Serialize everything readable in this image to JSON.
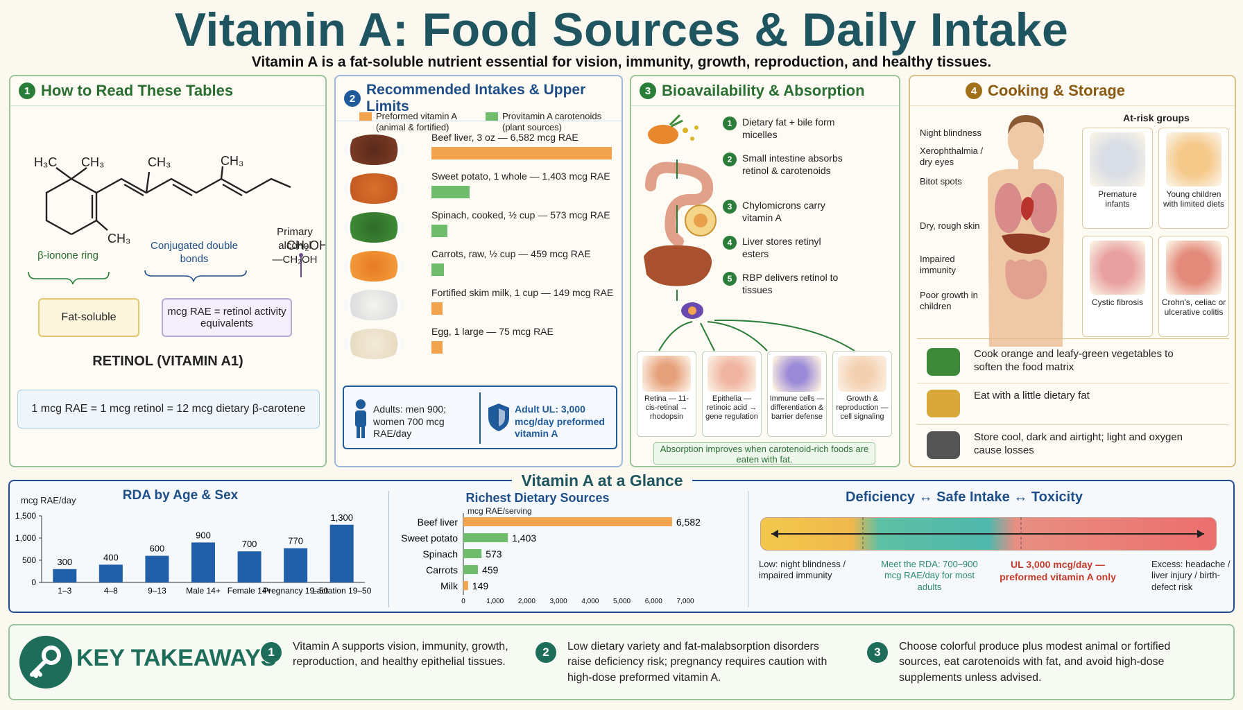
{
  "title": "Vitamin A: Food Sources & Daily Intake",
  "subtitle": "Vitamin A is a fat-soluble nutrient essential for vision, immunity, growth, reproduction, and healthy tissues.",
  "panel1": {
    "num": "1",
    "title": "How to Read These Tables",
    "structure": {
      "h3c": "H",
      "h3c_sub": "3",
      "h3c_c": "C",
      "ch3a": "CH",
      "ch3_sub": "3",
      "ch2oh": "CH",
      "ch2_sub": "2",
      "oh": "OH"
    },
    "label_ring": "β-ionone ring",
    "label_conj": "Conjugated double bonds",
    "label_alcohol_1": "Primary",
    "label_alcohol_2": "alcohol",
    "label_alcohol_3": "—CH₂OH",
    "badge_fat": "Fat-soluble",
    "badge_rae": "mcg RAE = retinol activity equivalents",
    "retinol": "RETINOL (VITAMIN A1)",
    "equiv": "1 mcg RAE = 1 mcg retinol = 12 mcg dietary β-carotene"
  },
  "panel2": {
    "num": "2",
    "title": "Recommended Intakes & Upper Limits",
    "legend_preformed": "Preformed vitamin A (animal & fortified)",
    "legend_provitamin": "Provitamin A carotenoids (plant sources)",
    "foods": [
      {
        "label": "Beef liver, 3 oz — 6,582 mcg RAE",
        "value": 6582,
        "type": "preformed"
      },
      {
        "label": "Sweet potato, 1 whole — 1,403 mcg RAE",
        "value": 1403,
        "type": "provitamin"
      },
      {
        "label": "Spinach, cooked, ½ cup — 573 mcg RAE",
        "value": 573,
        "type": "provitamin"
      },
      {
        "label": "Carrots, raw, ½ cup — 459 mcg RAE",
        "value": 459,
        "type": "provitamin"
      },
      {
        "label": "Fortified skim milk, 1 cup — 149 mcg RAE",
        "value": 149,
        "type": "preformed"
      },
      {
        "label": "Egg, 1 large — 75 mcg RAE",
        "value": 75,
        "type": "preformed"
      }
    ],
    "adults": "Adults: men 900; women 700 mcg RAE/day",
    "ul": "Adult UL: 3,000 mcg/day preformed vitamin A"
  },
  "panel3": {
    "num": "3",
    "title": "Bioavailability & Absorption",
    "steps": [
      {
        "n": "1",
        "text": "Dietary fat + bile form micelles"
      },
      {
        "n": "2",
        "text": "Small intestine absorbs retinol & carotenoids"
      },
      {
        "n": "3",
        "text": "Chylomicrons carry vitamin A"
      },
      {
        "n": "4",
        "text": "Liver stores retinyl esters"
      },
      {
        "n": "5",
        "text": "RBP delivers retinol to tissues"
      }
    ],
    "targets": [
      {
        "text": "Retina — 11-cis-retinal → rhodopsin"
      },
      {
        "text": "Epithelia — retinoic acid → gene regulation"
      },
      {
        "text": "Immune cells — differentiation & barrier defense"
      },
      {
        "text": "Growth & reproduction — cell signaling"
      }
    ],
    "note": "Absorption improves when carotenoid-rich foods are eaten with fat."
  },
  "panel4": {
    "num": "4",
    "title": "Cooking & Storage",
    "deficiency_signs": [
      "Night blindness",
      "Xerophthalmia / dry eyes",
      "Bitot spots",
      "Dry, rough skin",
      "Impaired immunity",
      "Poor growth in children"
    ],
    "at_risk_title": "At-risk groups",
    "at_risk": [
      "Premature infants",
      "Young children with limited diets",
      "Cystic fibrosis",
      "Crohn's, celiac or ulcerative colitis"
    ],
    "tips": [
      "Cook orange and leafy-green vegetables to soften the food matrix",
      "Eat with a little dietary fat",
      "Store cool, dark and airtight; light and oxygen cause losses"
    ]
  },
  "glance": {
    "title": "Vitamin A at a Glance",
    "rda_title": "RDA by Age & Sex",
    "rda_unit": "mcg RAE/day",
    "sources_title": "Richest Dietary Sources",
    "sources_unit": "mcg RAE/serving",
    "spectrum_title": "Deficiency ↔ Safe Intake ↔ Toxicity",
    "spectrum_low": "Low: night blindness / impaired immunity",
    "spectrum_rda": "Meet the RDA: 700–900 mcg RAE/day for most adults",
    "spectrum_ul": "UL 3,000 mcg/day — preformed vitamin A only",
    "spectrum_excess": "Excess: headache / liver injury / birth-defect risk"
  },
  "chart_data": [
    {
      "type": "bar",
      "title": "RDA by Age & Sex",
      "ylabel": "mcg RAE/day",
      "categories": [
        "1–3",
        "4–8",
        "9–13",
        "Male 14+",
        "Female 14+",
        "Pregnancy 19–50",
        "Lactation 19–50"
      ],
      "values": [
        300,
        400,
        600,
        900,
        700,
        770,
        1300
      ],
      "ylim": [
        0,
        1500
      ],
      "yticks": [
        "0",
        "500",
        "1,000",
        "1,500"
      ],
      "value_labels": [
        "300",
        "400",
        "600",
        "900",
        "700",
        "770",
        "1,300"
      ],
      "color": "#2160a8"
    },
    {
      "type": "bar",
      "orientation": "horizontal",
      "title": "Richest Dietary Sources",
      "xlabel": "mcg RAE/serving",
      "categories": [
        "Beef liver",
        "Sweet potato",
        "Spinach",
        "Carrots",
        "Milk"
      ],
      "values": [
        6582,
        1403,
        573,
        459,
        149
      ],
      "value_labels": [
        "6,582",
        "1,403",
        "573",
        "459",
        "149"
      ],
      "colors": [
        "#f2a34d",
        "#6fbd6c",
        "#6fbd6c",
        "#6fbd6c",
        "#f2a34d"
      ],
      "xlim": [
        0,
        7000
      ],
      "xticks": [
        "0",
        "1,000",
        "2,000",
        "3,000",
        "4,000",
        "5,000",
        "6,000",
        "7,000"
      ]
    }
  ],
  "takeaways": {
    "title": "KEY TAKEAWAYS",
    "items": [
      {
        "n": "1",
        "text": "Vitamin A supports vision, immunity, growth, reproduction, and healthy epithelial tissues."
      },
      {
        "n": "2",
        "text": "Low dietary variety and fat-malabsorption disorders raise deficiency risk; pregnancy requires caution with high-dose preformed vitamin A."
      },
      {
        "n": "3",
        "text": "Choose colorful produce plus modest animal or fortified sources, eat carotenoids with fat, and avoid high-dose supplements unless advised."
      }
    ]
  }
}
